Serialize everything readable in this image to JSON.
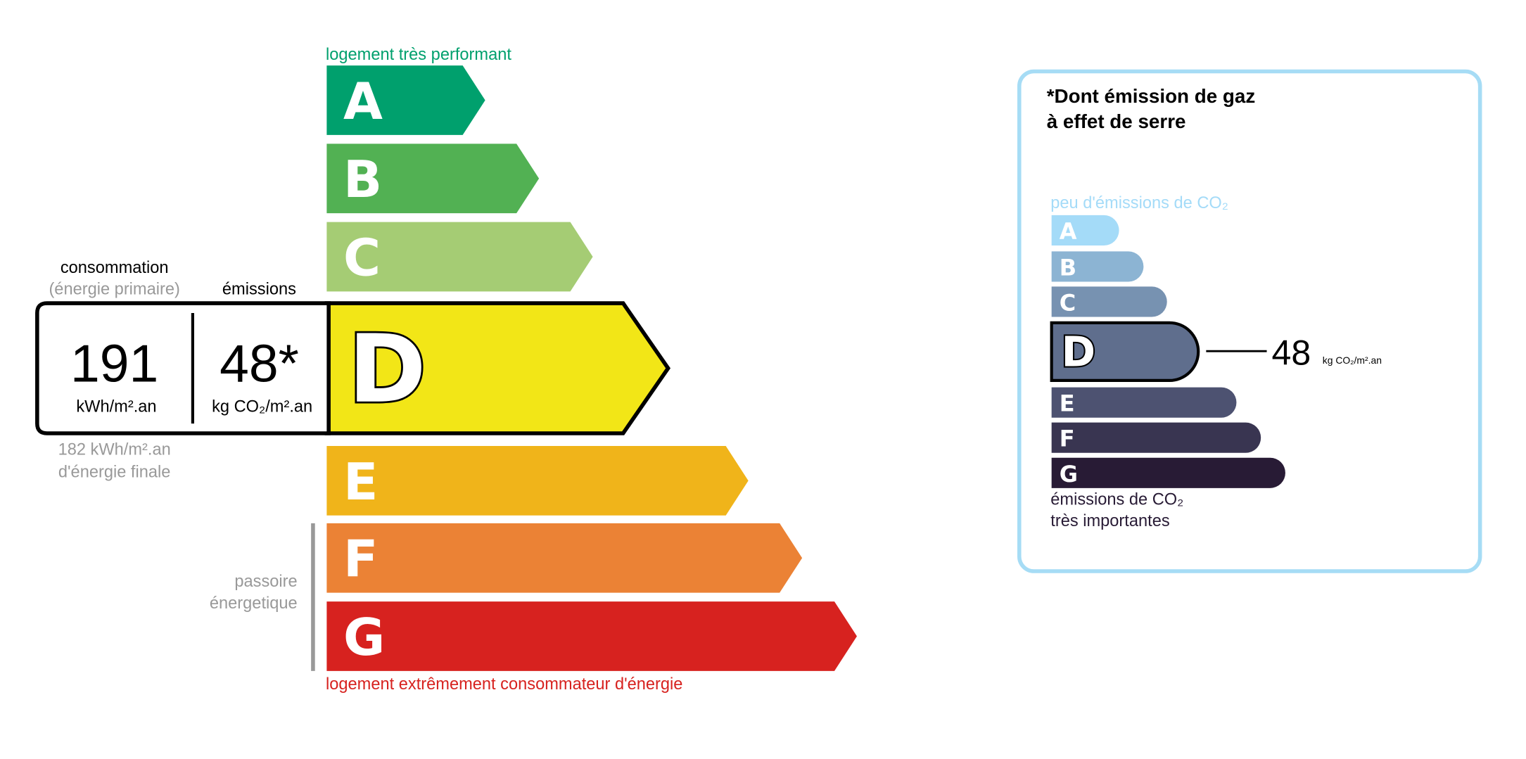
{
  "energy": {
    "top_label": "logement très performant",
    "bottom_label": "logement extrêmement consommateur d'énergie",
    "passoire_line1": "passoire",
    "passoire_line2": "énergetique",
    "classes": [
      {
        "letter": "A",
        "color": "#00a06d"
      },
      {
        "letter": "B",
        "color": "#52b153"
      },
      {
        "letter": "C",
        "color": "#a5cc74"
      },
      {
        "letter": "D",
        "color": "#f2e617"
      },
      {
        "letter": "E",
        "color": "#f0b41a"
      },
      {
        "letter": "F",
        "color": "#eb8235"
      },
      {
        "letter": "G",
        "color": "#d7221f"
      }
    ],
    "current_class": "D",
    "consommation_label": "consommation",
    "primaire_label": "(énergie primaire)",
    "emissions_label": "émissions",
    "consumption_value": "191",
    "consumption_unit": "kWh/m².an",
    "emissions_value": "48*",
    "emissions_unit": "kg CO₂/m².an",
    "final_value": "182 kWh/m².an",
    "final_label": "d'énergie finale"
  },
  "ges": {
    "title_line1": "*Dont émission de gaz",
    "title_line2": "à effet de serre",
    "top_label": "peu d'émissions de CO₂",
    "bottom_line1": "émissions de CO₂",
    "bottom_line2": "très importantes",
    "classes": [
      {
        "letter": "A",
        "color": "#a4dbf8"
      },
      {
        "letter": "B",
        "color": "#8cb4d3"
      },
      {
        "letter": "C",
        "color": "#7792b1"
      },
      {
        "letter": "D",
        "color": "#5f6e8d"
      },
      {
        "letter": "E",
        "color": "#4d5271"
      },
      {
        "letter": "F",
        "color": "#393551"
      },
      {
        "letter": "G",
        "color": "#281b35"
      }
    ],
    "current_class": "D",
    "value": "48",
    "unit": "kg CO₂/m².an",
    "border_color": "#a6dcf5"
  }
}
